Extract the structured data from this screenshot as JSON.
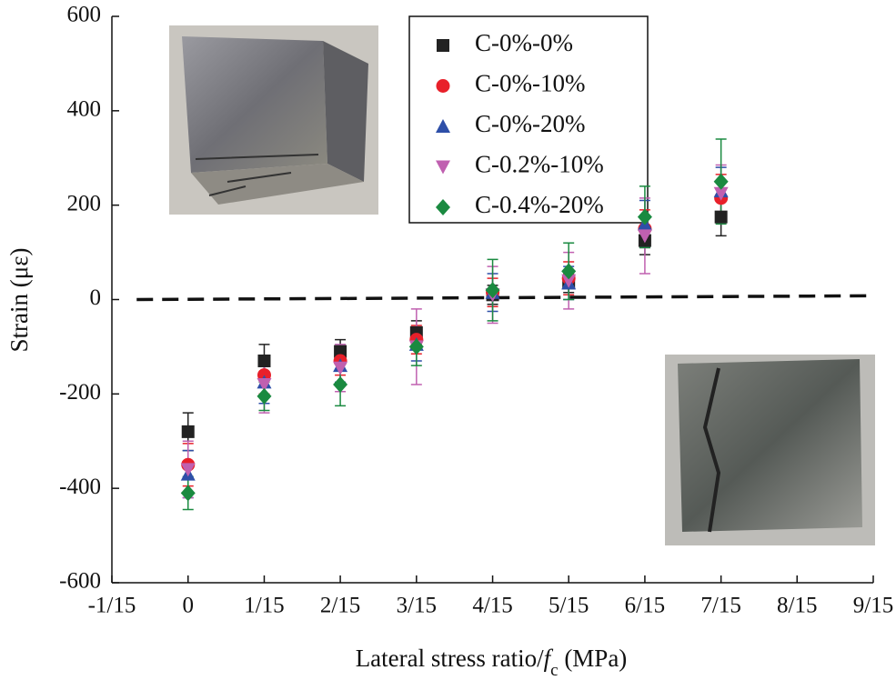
{
  "chart_data": {
    "type": "scatter",
    "ylabel": "Strain (με)",
    "xlabel": [
      "Lateral stress ratio/",
      "f",
      "c",
      " (MPa)"
    ],
    "xlim": [
      -0.0667,
      0.6
    ],
    "xticks": [
      {
        "value": -0.0667,
        "label": "-1/15"
      },
      0,
      {
        "value": 0.0667,
        "label": "1/15"
      },
      {
        "value": 0.1333,
        "label": "2/15"
      },
      {
        "value": 0.2,
        "label": "3/15"
      },
      {
        "value": 0.2667,
        "label": "4/15"
      },
      {
        "value": 0.3333,
        "label": "5/15"
      },
      {
        "value": 0.4,
        "label": "6/15"
      },
      {
        "value": 0.4667,
        "label": "7/15"
      },
      {
        "value": 0.5333,
        "label": "8/15"
      },
      {
        "value": 0.6,
        "label": "9/15"
      }
    ],
    "ylim": [
      -600,
      600
    ],
    "yticks": [
      -600,
      -400,
      -200,
      0,
      200,
      400,
      600
    ],
    "legend": "top-center",
    "baseline": {
      "x": [
        -0.045,
        0.6
      ],
      "y": [
        0,
        8
      ]
    },
    "x": [
      0,
      0.0667,
      0.1333,
      0.2,
      0.2667,
      0.3333,
      0.4,
      0.4667
    ],
    "series": [
      {
        "name": "C-0%-0%",
        "color": "#222222",
        "marker": "square",
        "values": [
          -280,
          -130,
          -110,
          -70,
          10,
          35,
          125,
          175
        ],
        "errors": [
          40,
          35,
          25,
          25,
          20,
          20,
          30,
          40
        ]
      },
      {
        "name": "C-0%-10%",
        "color": "#e8202a",
        "marker": "circle",
        "values": [
          -350,
          -160,
          -130,
          -85,
          15,
          45,
          150,
          215
        ],
        "errors": [
          45,
          40,
          30,
          30,
          30,
          35,
          40,
          50
        ]
      },
      {
        "name": "C-0%-20%",
        "color": "#2e4fa8",
        "marker": "triangle",
        "values": [
          -370,
          -175,
          -140,
          -95,
          15,
          35,
          160,
          230
        ],
        "errors": [
          50,
          45,
          35,
          35,
          40,
          35,
          50,
          50
        ]
      },
      {
        "name": "C-0.2%-10%",
        "color": "#c060b0",
        "marker": "triangle-down",
        "values": [
          -360,
          -180,
          -145,
          -100,
          10,
          40,
          135,
          225
        ],
        "errors": [
          60,
          60,
          50,
          80,
          60,
          60,
          80,
          60
        ]
      },
      {
        "name": "C-0.4%-20%",
        "color": "#1a8a40",
        "marker": "diamond",
        "values": [
          -410,
          -205,
          -180,
          -100,
          20,
          60,
          175,
          250
        ],
        "errors": [
          35,
          30,
          45,
          40,
          65,
          60,
          65,
          90
        ]
      }
    ]
  }
}
